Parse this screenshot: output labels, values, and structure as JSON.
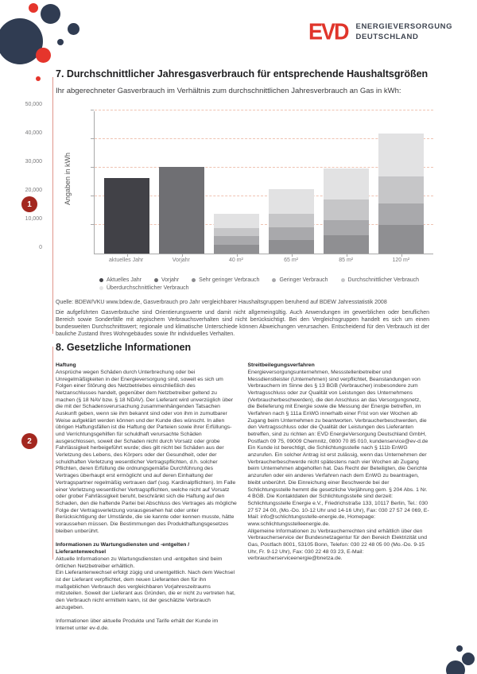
{
  "brand": {
    "logo_text": "EVD",
    "company_line1": "ENERGIEVERSORGUNG",
    "company_line2": "DEUTSCHLAND",
    "logo_color": "#e0352b",
    "navy": "#303c52",
    "accent_red": "#e5352c",
    "badge_red": "#a3271f"
  },
  "section7": {
    "badge": "1",
    "title": "7. Durchschnittlicher Jahresgasverbrauch für entsprechende Haushaltsgrößen",
    "subtitle": "Ihr abgerechneter Gasverbrauch im Verhältnis zum durchschnittlichen Jahresverbrauch an Gas in kWh:",
    "source": "Quelle: BDEW/VKU www.bdew.de, Gasverbrauch pro Jahr vergleichbarer Haushaltsgruppen beruhend auf BDEW Jahresstatistik 2008",
    "disclaimer": "Die aufgeführten Gasverbräuche sind Orientierungswerte und damit nicht allgemeingültig. Auch Anwendungen im gewerblichen oder beruflichen Bereich sowie Sonderfälle mit atypischem Verbrauchsverhalten sind nicht berücksichtigt. Bei den Vergleichsgruppen handelt es sich um einen bundesweiten Durchschnittswert; regionale und klimatische Unterschiede können Abweichungen verursachen. Entscheidend für den Verbrauch ist der bauliche Zustand Ihres Wohngebäudes sowie Ihr individuelles Verhalten."
  },
  "chart_data": {
    "type": "bar",
    "stacked": true,
    "title": "",
    "xlabel": "",
    "ylabel": "Angaben in kWh",
    "ylim": [
      0,
      50000
    ],
    "ytick_values": [
      0,
      10000,
      20000,
      30000,
      40000,
      50000
    ],
    "ytick_labels": [
      "0",
      "10,000",
      "20,000",
      "30,000",
      "40,000",
      "50,000"
    ],
    "grid": "dashed horizontal, salmon",
    "legend_position": "bottom",
    "categories": [
      "aktuelles Jahr",
      "Vorjahr",
      "40 m²",
      "65 m²",
      "85 m²",
      "120 m²"
    ],
    "legend": [
      {
        "label": "Aktuelles Jahr",
        "color": "#414147"
      },
      {
        "label": "Vorjahr",
        "color": "#6f6f73"
      },
      {
        "label": "Sehr geringer Verbrauch",
        "color": "#8f8f92"
      },
      {
        "label": "Geringer Verbrauch",
        "color": "#a9a9ac"
      },
      {
        "label": "Durchschnittlicher Verbrauch",
        "color": "#c6c6c8"
      },
      {
        "label": "Überdurchschnittlicher Verbrauch",
        "color": "#e2e2e3"
      }
    ],
    "bars": [
      {
        "label": "aktuelles Jahr",
        "total": 26400,
        "segments": [
          {
            "legend": "Aktuelles Jahr",
            "value": 26400
          }
        ]
      },
      {
        "label": "Vorjahr",
        "total": 30300,
        "segments": [
          {
            "legend": "Vorjahr",
            "value": 30300
          }
        ]
      },
      {
        "label": "40 m²",
        "total": 14000,
        "segments": [
          {
            "legend": "Sehr geringer Verbrauch",
            "value": 3000
          },
          {
            "legend": "Geringer Verbrauch",
            "value": 3000
          },
          {
            "legend": "Durchschnittlicher Verbrauch",
            "value": 3000
          },
          {
            "legend": "Überdurchschnittlicher Verbrauch",
            "value": 5000
          }
        ]
      },
      {
        "label": "65 m²",
        "total": 22500,
        "segments": [
          {
            "legend": "Sehr geringer Verbrauch",
            "value": 4800
          },
          {
            "legend": "Geringer Verbrauch",
            "value": 4400
          },
          {
            "legend": "Durchschnittlicher Verbrauch",
            "value": 4800
          },
          {
            "legend": "Überdurchschnittlicher Verbrauch",
            "value": 8500
          }
        ]
      },
      {
        "label": "85 m²",
        "total": 29800,
        "segments": [
          {
            "legend": "Sehr geringer Verbrauch",
            "value": 6500
          },
          {
            "legend": "Geringer Verbrauch",
            "value": 5300
          },
          {
            "legend": "Durchschnittlicher Verbrauch",
            "value": 7000
          },
          {
            "legend": "Überdurchschnittlicher Verbrauch",
            "value": 11000
          }
        ]
      },
      {
        "label": "120 m²",
        "total": 42000,
        "segments": [
          {
            "legend": "Sehr geringer Verbrauch",
            "value": 10000
          },
          {
            "legend": "Geringer Verbrauch",
            "value": 7500
          },
          {
            "legend": "Durchschnittlicher Verbrauch",
            "value": 9500
          },
          {
            "legend": "Überdurchschnittlicher Verbrauch",
            "value": 15000
          }
        ]
      }
    ]
  },
  "section8": {
    "badge": "2",
    "title": "8. Gesetzliche Informationen",
    "left_column": [
      {
        "heading": "Haftung",
        "paragraphs": [
          "Ansprüche wegen Schäden durch Unterbrechung oder bei Unregelmäßigkeiten in der Energieversorgung sind, soweit es sich um Folgen einer Störung des Netzbetriebes einschließlich des Netzanschlusses handelt, gegenüber dem Netzbetreiber geltend zu machen (§ 18 NAV bzw. § 18 NDAV). Der Lieferant wird unverzüglich über die mit der Schadensverursachung zusammenhängenden Tatsachen Auskunft geben, wenn sie ihm bekannt sind oder von ihm in zumutbarer Weise aufgeklärt werden können und der Kunde dies wünscht. In allen übrigen Haftungsfällen ist die Haftung der Parteien sowie ihrer Erfüllungs- und Verrichtungsgehilfen für schuldhaft verursachte Schäden ausgeschlossen, soweit der Schaden nicht durch Vorsatz oder grobe Fahrlässigkeit herbeigeführt wurde; dies gilt nicht bei Schäden aus der Verletzung des Lebens, des Körpers oder der Gesundheit, oder der schuldhaften Verletzung wesentlicher Vertragspflichten, d.h. solcher Pflichten, deren Erfüllung die ordnungsgemäße Durchführung des Vertrages überhaupt erst ermöglicht und auf deren Einhaltung der Vertragspartner regelmäßig vertrauen darf (sog. Kardinalpflichten). Im Falle einer Verletzung wesentlicher Vertragspflichten, welche nicht auf Vorsatz oder grober Fahrlässigkeit beruht, beschränkt sich die Haftung auf den Schaden, den die haftende Partei bei Abschluss des Vertrages als mögliche Folge der Vertragsverletzung vorausgesehen hat oder unter Berücksichtigung der Umstände, die sie kannte oder kennen musste, hätte voraussehen müssen. Die Bestimmungen des Produkthaftungsgesetzes bleiben unberührt."
        ]
      },
      {
        "heading": "Informationen zu Wartungsdiensten und -entgelten / Lieferantenwechsel",
        "paragraphs": [
          "Aktuelle Informationen zu Wartungsdiensten und -entgelten sind beim örtlichen Netzbetreiber erhältlich.",
          "Ein Lieferantenwechsel erfolgt zügig und unentgeltlich. Nach dem Wechsel ist der Lieferant verpflichtet, dem neuen Lieferanten den für ihn maßgeblichen Verbrauch des vergleichbaren Vorjahreszeitraums mitzuteilen. Soweit der Lieferant aus Gründen, die er nicht zu vertreten hat, den Verbrauch nicht ermitteln kann, ist der geschätzte Verbrauch anzugeben."
        ]
      },
      {
        "heading": "",
        "paragraphs": [
          "Informationen über aktuelle Produkte und Tarife erhält der Kunde im Internet unter ev-d.de."
        ]
      }
    ],
    "right_column": [
      {
        "heading": "Streitbeilegungsverfahren",
        "paragraphs": [
          "Energieversorgungsunternehmen, Messstellenbetreiber und Messdienstleister (Unternehmen) sind verpflichtet, Beanstandungen von Verbrauchern im Sinne des § 13 BGB (Verbraucher) insbesondere zum Vertragsschluss oder zur Qualität von Leistungen des Unternehmens (Verbraucherbeschwerden), die den Anschluss an das Versorgungsnetz, die Belieferung mit Energie sowie die Messung der Energie betreffen, im Verfahren nach § 111a EnWG innerhalb einer Frist von vier Wochen ab Zugang beim Unternehmen zu beantworten. Verbraucherbeschwerden, die den Vertragsschluss oder die Qualität der Leistungen des Lieferanten betreffen, sind zu richten an: EVD EnergieVersorgung Deutschland GmbH, Postfach 09 75, 09009 Chemnitz, 0800 70 85 010, kundenservice@ev-d.de",
          "Ein Kunde ist berechtigt, die Schlichtungsstelle nach § 111b EnWG anzurufen. Ein solcher Antrag ist erst zulässig, wenn das Unternehmen der Verbraucherbeschwerde nicht spätestens nach vier Wochen ab Zugang beim Unternehmen abgeholfen hat. Das Recht der Beteiligten, die Gerichte anzurufen oder ein anderes Verfahren nach dem EnWG zu beantragen, bleibt unberührt. Die Einreichung einer Beschwerde bei der Schlichtungsstelle hemmt die gesetzliche Verjährung gem. § 204 Abs. 1 Nr. 4 BGB. Die Kontaktdaten der Schlichtungsstelle sind derzeit: Schlichtungsstelle Energie e.V., Friedrichstraße 133, 10117 Berlin, Tel.: 030 27 57 24 00, (Mo.-Do. 10-12 Uhr und 14-16 Uhr), Fax: 030 27 57 24 069, E-Mail: info@schlichtungsstelle-energie.de, Homepage: www.schlichtungsstelleenergie.de.",
          "Allgemeine Informationen zu Verbraucherrechten sind erhältlich über den Verbraucherservice der Bundesnetzagentur für den Bereich Elektrizität und Gas, Postfach 8001, 53105 Bonn, Telefon: 030 22 48 05 00 (Mo.-Do. 9-15 Uhr, Fr. 9-12 Uhr), Fax: 030 22 48 03 23, E-Mail: verbraucherserviceenergie@bnetza.de."
        ]
      }
    ]
  }
}
